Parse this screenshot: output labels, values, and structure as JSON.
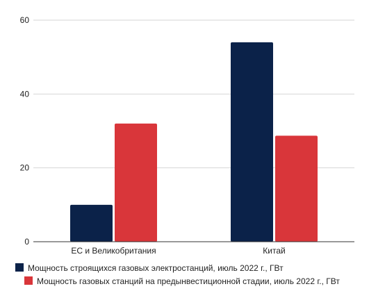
{
  "chart_data": {
    "type": "bar",
    "title": "",
    "xlabel": "",
    "ylabel": "",
    "categories": [
      "ЕС и Великобритания",
      "Китай"
    ],
    "series": [
      {
        "name": "Мощность строящихся газовых электростанций, июль 2022 г., ГВт",
        "color": "#0b2249",
        "values": [
          10,
          54
        ]
      },
      {
        "name": "Мощность газовых станций на предынвестиционной стадии, июль 2022 г., ГВт",
        "color": "#d9363a",
        "values": [
          32,
          28.7
        ]
      }
    ],
    "ylim": [
      0,
      60
    ],
    "yticks": [
      0,
      20,
      40,
      60
    ],
    "grid": true,
    "legend_position": "bottom"
  }
}
